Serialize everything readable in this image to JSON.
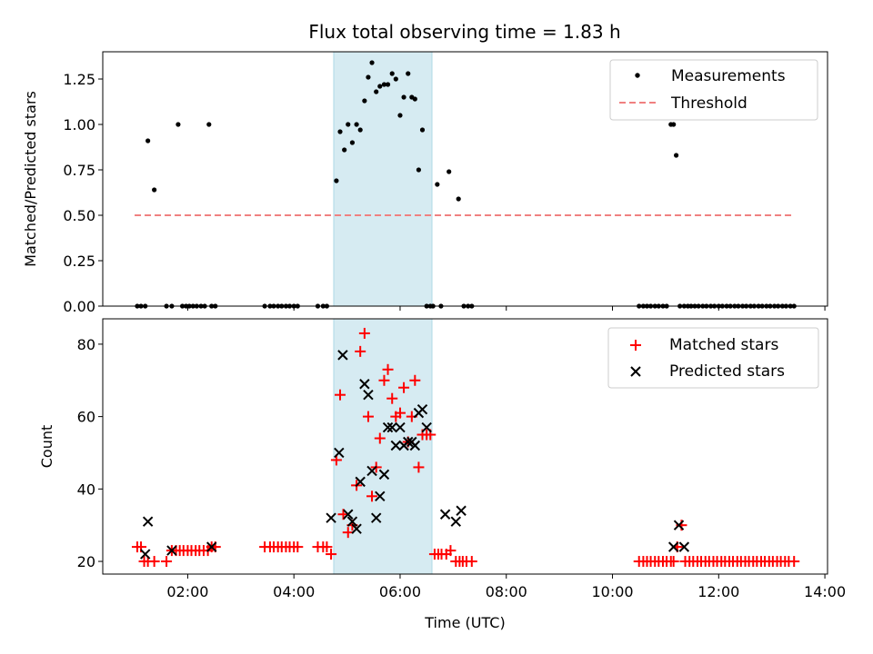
{
  "figure_title": "Flux total observing time = 1.83 h",
  "highlight_span_hours": [
    4.75,
    6.6
  ],
  "colors": {
    "measurement": "#000000",
    "threshold": "#f08080",
    "matched": "#ff0000",
    "predicted": "#000000",
    "span": "#add8e6"
  },
  "chart_data": [
    {
      "type": "scatter",
      "title": "Flux total observing time = 1.83 h",
      "xlabel": "",
      "ylabel": "Matched/Predicted stars",
      "xlim": [
        0.4,
        14.05
      ],
      "ylim": [
        0,
        1.4
      ],
      "yticks": [
        "0.00",
        "0.25",
        "0.50",
        "0.75",
        "1.00",
        "1.25"
      ],
      "grid": false,
      "legend_position": "upper-right",
      "series": [
        {
          "name": "Measurements",
          "marker": "dot",
          "x": [
            1.05,
            1.12,
            1.2,
            1.25,
            1.37,
            1.6,
            1.7,
            1.82,
            1.9,
            1.97,
            2.03,
            2.1,
            2.17,
            2.25,
            2.32,
            2.4,
            2.45,
            2.52,
            3.45,
            3.55,
            3.62,
            3.7,
            3.77,
            3.85,
            3.92,
            4.0,
            4.07,
            4.45,
            4.55,
            4.62,
            4.8,
            4.87,
            4.95,
            5.02,
            5.1,
            5.18,
            5.25,
            5.33,
            5.4,
            5.47,
            5.55,
            5.62,
            5.7,
            5.77,
            5.85,
            5.92,
            6.0,
            6.07,
            6.15,
            6.22,
            6.28,
            6.35,
            6.42,
            6.5,
            6.57,
            6.62,
            6.7,
            6.77,
            6.92,
            7.1,
            7.2,
            7.28,
            7.35,
            10.5,
            10.58,
            10.65,
            10.72,
            10.8,
            10.87,
            10.95,
            11.02,
            11.1,
            11.15,
            11.2,
            11.27,
            11.35,
            11.42,
            11.48,
            11.55,
            11.62,
            11.7,
            11.77,
            11.85,
            11.92,
            12.0,
            12.07,
            12.15,
            12.22,
            12.3,
            12.37,
            12.45,
            12.52,
            12.6,
            12.67,
            12.75,
            12.82,
            12.9,
            12.97,
            13.05,
            13.12,
            13.2,
            13.27,
            13.35,
            13.42
          ],
          "y": [
            0,
            0,
            0,
            0.91,
            0.64,
            0,
            0,
            1.0,
            0,
            0,
            0,
            0,
            0,
            0,
            0,
            1.0,
            0,
            0,
            0,
            0,
            0,
            0,
            0,
            0,
            0,
            0,
            0,
            0,
            0,
            0,
            0.69,
            0.96,
            0.86,
            1.0,
            0.9,
            1.0,
            0.97,
            1.13,
            1.26,
            1.34,
            1.18,
            1.21,
            1.22,
            1.22,
            1.28,
            1.25,
            1.05,
            1.15,
            1.28,
            1.15,
            1.14,
            0.75,
            0.97,
            0,
            0,
            0,
            0.67,
            0,
            0.74,
            0.59,
            0,
            0,
            0,
            0,
            0,
            0,
            0,
            0,
            0,
            0,
            0,
            1.0,
            1.0,
            0.83,
            0,
            0,
            0,
            0,
            0,
            0,
            0,
            0,
            0,
            0,
            0,
            0,
            0,
            0,
            0,
            0,
            0,
            0,
            0,
            0,
            0,
            0,
            0,
            0,
            0,
            0,
            0,
            0,
            0,
            0
          ]
        },
        {
          "name": "Threshold",
          "style": "dashed",
          "x": [
            1.0,
            13.4
          ],
          "y": [
            0.5,
            0.5
          ]
        }
      ]
    },
    {
      "type": "scatter",
      "title": "",
      "xlabel": "Time (UTC)",
      "ylabel": "Count",
      "xlim": [
        0.4,
        14.05
      ],
      "ylim": [
        16.5,
        87
      ],
      "yticks": [
        "20",
        "40",
        "60",
        "80"
      ],
      "xticks": [
        {
          "value": 2,
          "label": "02:00"
        },
        {
          "value": 4,
          "label": "04:00"
        },
        {
          "value": 6,
          "label": "06:00"
        },
        {
          "value": 8,
          "label": "08:00"
        },
        {
          "value": 10,
          "label": "10:00"
        },
        {
          "value": 12,
          "label": "12:00"
        },
        {
          "value": 14,
          "label": "14:00"
        }
      ],
      "grid": false,
      "legend_position": "upper-right",
      "series": [
        {
          "name": "Matched stars",
          "marker": "plus",
          "x": [
            1.05,
            1.12,
            1.18,
            1.25,
            1.37,
            1.6,
            1.7,
            1.78,
            1.85,
            1.92,
            2.0,
            2.07,
            2.15,
            2.22,
            2.3,
            2.38,
            2.45,
            2.52,
            3.45,
            3.55,
            3.62,
            3.7,
            3.77,
            3.85,
            3.92,
            4.0,
            4.07,
            4.45,
            4.55,
            4.62,
            4.7,
            4.8,
            4.87,
            4.93,
            5.02,
            5.1,
            5.18,
            5.25,
            5.33,
            5.4,
            5.47,
            5.55,
            5.62,
            5.7,
            5.77,
            5.85,
            5.92,
            6.0,
            6.07,
            6.15,
            6.22,
            6.28,
            6.35,
            6.42,
            6.5,
            6.57,
            6.65,
            6.72,
            6.78,
            6.87,
            6.95,
            7.05,
            7.12,
            7.18,
            7.25,
            7.35,
            10.5,
            10.58,
            10.65,
            10.72,
            10.8,
            10.87,
            10.95,
            11.02,
            11.1,
            11.15,
            11.22,
            11.3,
            11.37,
            11.45,
            11.52,
            11.6,
            11.67,
            11.75,
            11.82,
            11.9,
            11.97,
            12.05,
            12.12,
            12.2,
            12.27,
            12.35,
            12.42,
            12.5,
            12.57,
            12.65,
            12.72,
            12.8,
            12.87,
            12.95,
            13.02,
            13.1,
            13.17,
            13.25,
            13.32,
            13.42
          ],
          "y": [
            24,
            24,
            20,
            20,
            20,
            20,
            23,
            23,
            23,
            23,
            23,
            23,
            23,
            23,
            23,
            23,
            24,
            24,
            24,
            24,
            24,
            24,
            24,
            24,
            24,
            24,
            24,
            24,
            24,
            24,
            22,
            48,
            66,
            33,
            28,
            30,
            41,
            78,
            83,
            60,
            38,
            46,
            54,
            70,
            73,
            65,
            60,
            61,
            68,
            53,
            60,
            70,
            46,
            55,
            55,
            55,
            22,
            22,
            22,
            22,
            23,
            20,
            20,
            20,
            20,
            20,
            20,
            20,
            20,
            20,
            20,
            20,
            20,
            20,
            20,
            20,
            24,
            30,
            20,
            20,
            20,
            20,
            20,
            20,
            20,
            20,
            20,
            20,
            20,
            20,
            20,
            20,
            20,
            20,
            20,
            20,
            20,
            20,
            20,
            20,
            20,
            20,
            20,
            20,
            20,
            20
          ]
        },
        {
          "name": "Predicted stars",
          "marker": "x",
          "x": [
            1.2,
            1.25,
            1.7,
            2.45,
            4.7,
            4.85,
            4.92,
            5.02,
            5.1,
            5.18,
            5.25,
            5.33,
            5.4,
            5.47,
            5.55,
            5.62,
            5.7,
            5.77,
            5.85,
            5.92,
            6.0,
            6.07,
            6.15,
            6.22,
            6.28,
            6.35,
            6.42,
            6.5,
            6.85,
            7.05,
            7.15,
            11.15,
            11.25,
            11.35
          ],
          "y": [
            22,
            31,
            23,
            24,
            32,
            50,
            77,
            33,
            31,
            29,
            42,
            69,
            66,
            45,
            32,
            38,
            44,
            57,
            57,
            52,
            57,
            52,
            53,
            53,
            52,
            61,
            62,
            57,
            33,
            31,
            34,
            24,
            30,
            24
          ]
        }
      ]
    }
  ]
}
